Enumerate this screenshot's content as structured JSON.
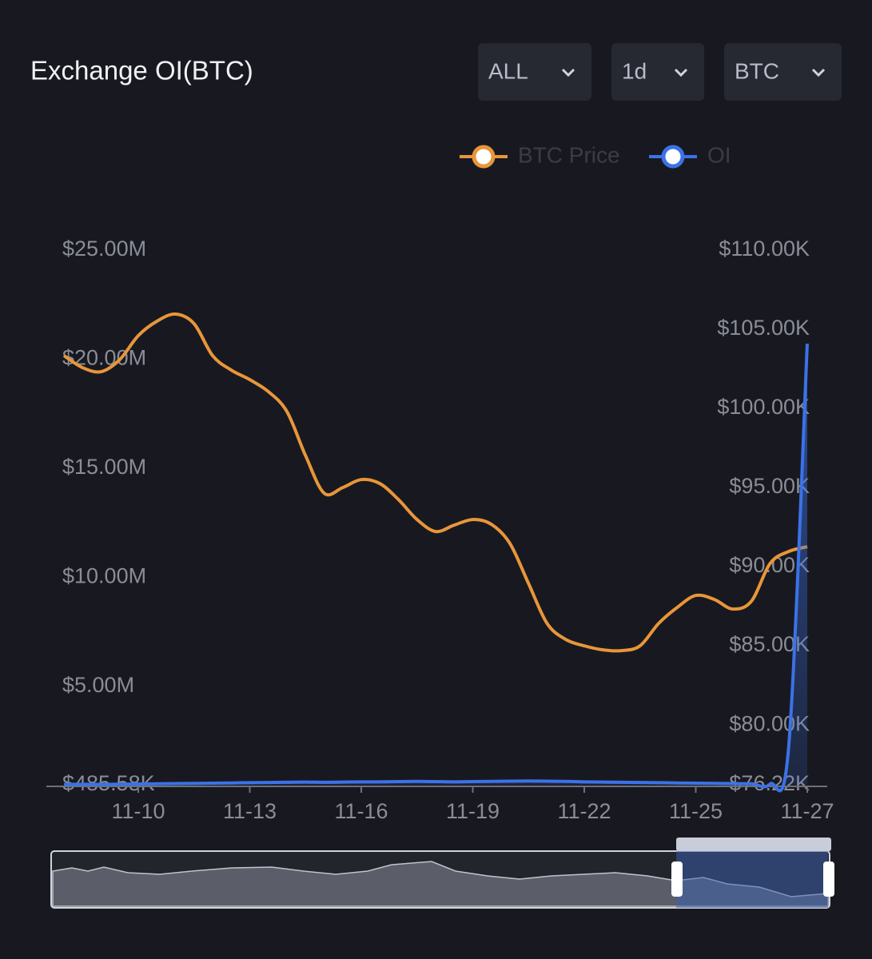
{
  "controls": [
    "ALL",
    "1d",
    "BTC"
  ],
  "chart_data": {
    "type": "line",
    "title": "Exchange OI(BTC)",
    "categories": [
      null,
      null,
      null,
      null,
      "11-10",
      null,
      null,
      null,
      null,
      null,
      "11-13",
      null,
      null,
      null,
      null,
      null,
      "11-16",
      null,
      null,
      null,
      null,
      null,
      "11-19",
      null,
      null,
      null,
      null,
      null,
      "11-22",
      null,
      null,
      null,
      null,
      null,
      "11-25",
      null,
      null,
      null,
      null,
      null,
      "11-27"
    ],
    "series": [
      {
        "name": "BTC Price",
        "color": "#e8963a",
        "axis": "y2",
        "values": [
          103333,
          102576,
          102323,
          103081,
          104596,
          105505,
          105960,
          105354,
          103333,
          102424,
          101818,
          101061,
          99798,
          97020,
          94646,
          95000,
          95505,
          95253,
          94242,
          92980,
          92222,
          92626,
          92980,
          92677,
          91465,
          88939,
          86414,
          85404,
          85000,
          84747,
          84697,
          85000,
          86414,
          87424,
          88182,
          87929,
          87323,
          87828,
          90202,
          90960,
          91263
        ]
      },
      {
        "name": "OI",
        "color": "#3b72e8",
        "area": true,
        "values": [
          500000,
          510000,
          505000,
          515000,
          520000,
          530000,
          540000,
          550000,
          560000,
          570000,
          580000,
          590000,
          600000,
          610000,
          600000,
          610000,
          620000,
          620000,
          630000,
          640000,
          630000,
          620000,
          630000,
          640000,
          650000,
          660000,
          650000,
          640000,
          620000,
          610000,
          600000,
          590000,
          580000,
          570000,
          560000,
          550000,
          540000,
          530000,
          520000,
          2220000,
          20710000
        ]
      }
    ],
    "ylim": [
      485580,
      25000000
    ],
    "yticks": [
      {
        "value": 485580,
        "label": "$485.58K"
      },
      {
        "value": 5000000,
        "label": "$5.00M"
      },
      {
        "value": 10000000,
        "label": "$10.00M"
      },
      {
        "value": 15000000,
        "label": "$15.00M"
      },
      {
        "value": 20000000,
        "label": "$20.00M"
      },
      {
        "value": 25000000,
        "label": "$25.00M"
      }
    ],
    "y2lim": [
      76220,
      110000
    ],
    "y2ticks": [
      {
        "value": 76220,
        "label": "$76.22K"
      },
      {
        "value": 80000,
        "label": "$80.00K"
      },
      {
        "value": 85000,
        "label": "$85.00K"
      },
      {
        "value": 90000,
        "label": "$90.00K"
      },
      {
        "value": 95000,
        "label": "$95.00K"
      },
      {
        "value": 100000,
        "label": "$100.00K"
      },
      {
        "value": 105000,
        "label": "$105.00K"
      },
      {
        "value": 110000,
        "label": "$110.00K"
      }
    ],
    "legend": "top-right",
    "grid": false
  }
}
